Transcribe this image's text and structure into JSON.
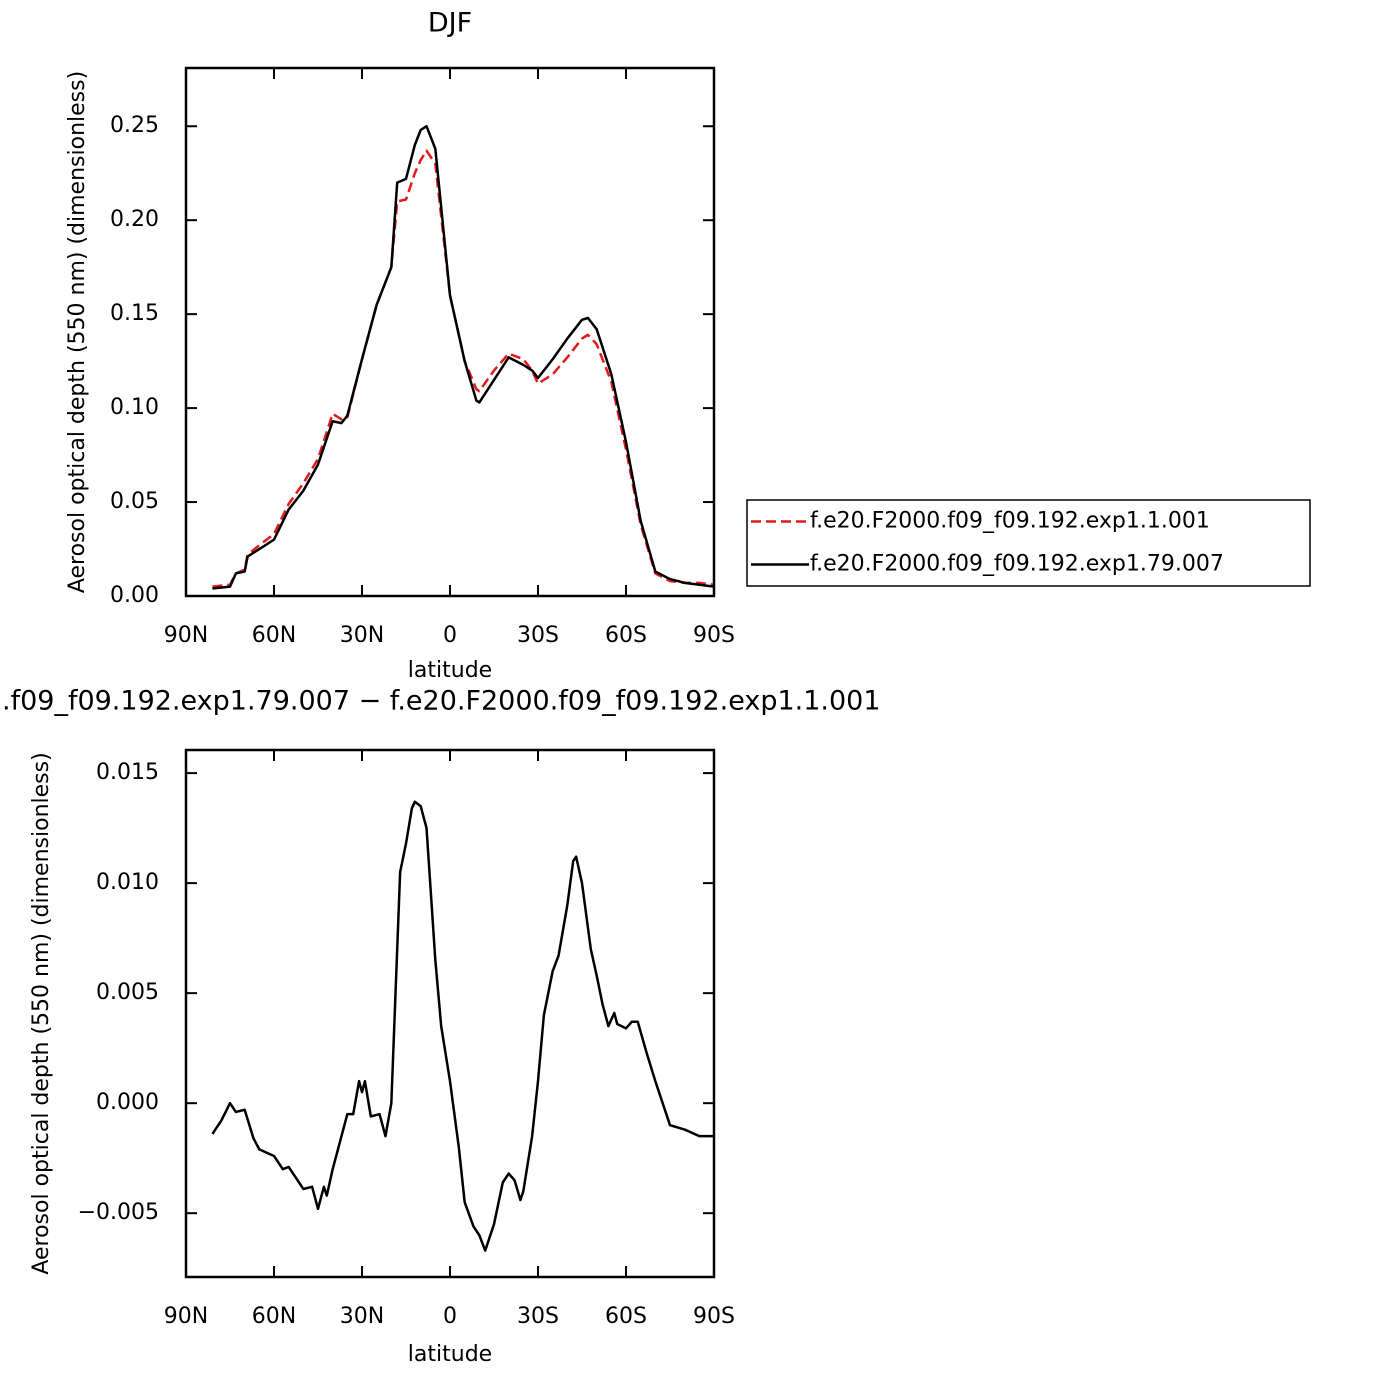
{
  "chart_data": [
    {
      "type": "line",
      "title": "DJF",
      "x_label": "latitude",
      "y_label": "Aerosol optical depth (550 nm) (dimensionless)",
      "x": [
        81,
        75,
        73,
        70,
        69,
        65,
        60,
        55,
        50,
        45,
        40,
        37,
        35,
        30,
        25,
        20,
        18,
        15,
        12,
        10,
        8,
        5,
        0,
        -5,
        -9,
        -10,
        -15,
        -20,
        -25,
        -28,
        -30,
        -35,
        -40,
        -45,
        -47,
        -50,
        -55,
        -60,
        -65,
        -70,
        -75,
        -80,
        -85,
        -90
      ],
      "series": [
        {
          "name": "f.e20.F2000.f09_f09.192.exp1.1.001",
          "color": "#e31a1c",
          "line_style": "dashed",
          "values": [
            0.005,
            0.006,
            0.012,
            0.014,
            0.022,
            0.027,
            0.033,
            0.049,
            0.06,
            0.073,
            0.097,
            0.094,
            0.095,
            0.126,
            0.155,
            0.175,
            0.21,
            0.211,
            0.225,
            0.232,
            0.237,
            0.23,
            0.16,
            0.125,
            0.11,
            0.109,
            0.12,
            0.129,
            0.126,
            0.12,
            0.113,
            0.118,
            0.127,
            0.137,
            0.139,
            0.134,
            0.114,
            0.078,
            0.038,
            0.012,
            0.008,
            0.007,
            0.007,
            0.006
          ]
        },
        {
          "name": "f.e20.F2000.f09_f09.192.exp1.79.007",
          "color": "#000000",
          "line_style": "solid",
          "values": [
            0.004,
            0.005,
            0.012,
            0.013,
            0.021,
            0.025,
            0.03,
            0.046,
            0.056,
            0.07,
            0.093,
            0.092,
            0.096,
            0.126,
            0.155,
            0.175,
            0.22,
            0.222,
            0.24,
            0.248,
            0.25,
            0.238,
            0.16,
            0.125,
            0.104,
            0.103,
            0.115,
            0.127,
            0.123,
            0.12,
            0.116,
            0.126,
            0.137,
            0.147,
            0.148,
            0.142,
            0.118,
            0.082,
            0.04,
            0.013,
            0.009,
            0.007,
            0.006,
            0.005
          ]
        }
      ],
      "xlim": [
        90,
        -90
      ],
      "xticks": [
        {
          "value": 90,
          "label": "90N"
        },
        {
          "value": 60,
          "label": "60N"
        },
        {
          "value": 30,
          "label": "30N"
        },
        0,
        {
          "value": -30,
          "label": "30S"
        },
        {
          "value": -60,
          "label": "60S"
        },
        {
          "value": -90,
          "label": "90S"
        }
      ],
      "ylim": [
        0,
        0.281
      ],
      "yticks": [
        {
          "value": 0,
          "label": "0.00"
        },
        0.05,
        {
          "value": 0.1,
          "label": "0.10"
        },
        0.15,
        {
          "value": 0.2,
          "label": "0.20"
        },
        0.25
      ],
      "legend": "outside-right"
    },
    {
      "type": "line",
      "title": ".f09_f09.192.exp1.79.007 − f.e20.F2000.f09_f09.192.exp1.1.001",
      "x_label": "latitude",
      "y_label": "Aerosol optical depth (550 nm) (dimensionless)",
      "x": [
        81,
        78,
        75,
        73,
        70,
        67,
        65,
        60,
        57,
        55,
        50,
        47,
        45,
        43,
        42,
        40,
        35,
        33,
        31,
        30,
        29,
        27,
        24,
        22,
        20,
        17,
        15,
        13,
        12,
        10,
        8,
        5,
        3,
        0,
        -3,
        -5,
        -8,
        -10,
        -12,
        -15,
        -18,
        -20,
        -22,
        -24,
        -25,
        -28,
        -30,
        -32,
        -35,
        -37,
        -40,
        -42,
        -43,
        -45,
        -48,
        -50,
        -52,
        -54,
        -56,
        -57,
        -60,
        -62,
        -64,
        -67,
        -70,
        -73,
        -75,
        -80,
        -85,
        -90
      ],
      "values": [
        -0.0014,
        -0.0008,
        0,
        -0.0004,
        -0.0003,
        -0.0016,
        -0.0021,
        -0.0024,
        -0.003,
        -0.0029,
        -0.0039,
        -0.0038,
        -0.0048,
        -0.0038,
        -0.0042,
        -0.003,
        -0.0005,
        -0.0005,
        0.001,
        0.0005,
        0.001,
        -0.0006,
        -0.0005,
        -0.0015,
        0,
        0.0105,
        0.0118,
        0.0134,
        0.0137,
        0.0135,
        0.0125,
        0.0065,
        0.0035,
        0.001,
        -0.002,
        -0.0045,
        -0.0056,
        -0.006,
        -0.0067,
        -0.0055,
        -0.0036,
        -0.0032,
        -0.0035,
        -0.0044,
        -0.004,
        -0.0015,
        0.001,
        0.004,
        0.006,
        0.0067,
        0.009,
        0.011,
        0.0112,
        0.01,
        0.007,
        0.0058,
        0.0045,
        0.0035,
        0.0041,
        0.0036,
        0.0034,
        0.0037,
        0.0037,
        0.0023,
        0.001,
        -0.0002,
        -0.001,
        -0.0012,
        -0.0015,
        -0.0015
      ],
      "color": "#000000",
      "xlim": [
        90,
        -90
      ],
      "xticks": [
        {
          "value": 90,
          "label": "90N"
        },
        {
          "value": 60,
          "label": "60N"
        },
        {
          "value": 30,
          "label": "30N"
        },
        0,
        {
          "value": -30,
          "label": "30S"
        },
        {
          "value": -60,
          "label": "60S"
        },
        {
          "value": -90,
          "label": "90S"
        }
      ],
      "ylim": [
        -0.0079,
        0.01605
      ],
      "yticks": [
        {
          "value": -0.005,
          "label": "−0.005"
        },
        {
          "value": 0,
          "label": "0.000"
        },
        0.005,
        {
          "value": 0.01,
          "label": "0.010"
        },
        0.015
      ]
    }
  ]
}
